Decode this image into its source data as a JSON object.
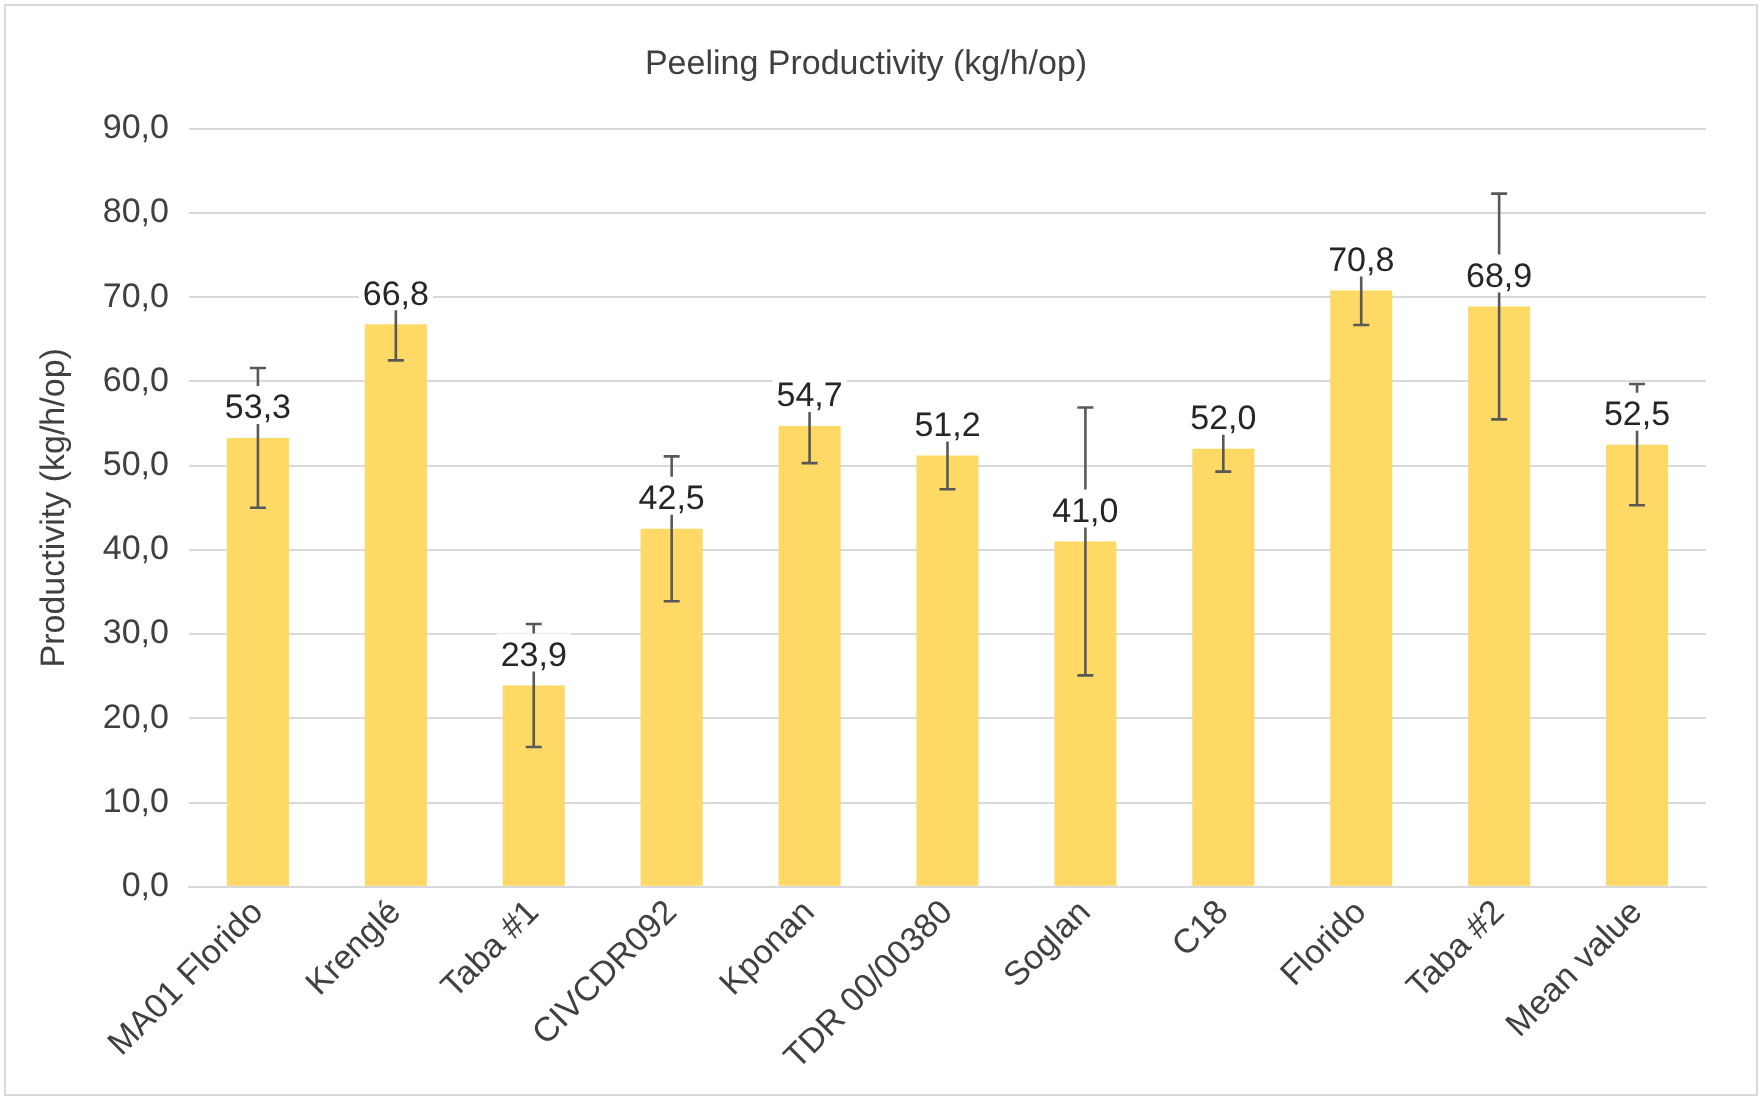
{
  "chart_data": {
    "type": "bar",
    "title": "Peeling Productivity (kg/h/op)",
    "ylabel": "Productivity (kg/h/op)",
    "categories": [
      "MA01 Florido",
      "Krenglé",
      "Taba #1",
      "CIVCDR092",
      "Kponan",
      "TDR 00/00380",
      "Soglan",
      "C18",
      "Florido",
      "Taba #2",
      "Mean value"
    ],
    "values": [
      53.3,
      66.8,
      23.9,
      42.5,
      54.7,
      51.2,
      41.0,
      52.0,
      70.8,
      68.9,
      52.5
    ],
    "value_labels": [
      "53,3",
      "66,8",
      "23,9",
      "42,5",
      "54,7",
      "51,2",
      "41,0",
      "52,0",
      "70,8",
      "68,9",
      "52,5"
    ],
    "errors": [
      8.3,
      4.3,
      7.3,
      8.6,
      4.4,
      4.0,
      15.9,
      2.7,
      4.1,
      13.4,
      7.2
    ],
    "color": "#ffd966",
    "ylim": [
      0,
      90
    ],
    "yticks": [
      {
        "value": 0,
        "label": "0,0"
      },
      {
        "value": 10,
        "label": "10,0"
      },
      {
        "value": 20,
        "label": "20,0"
      },
      {
        "value": 30,
        "label": "30,0"
      },
      {
        "value": 40,
        "label": "40,0"
      },
      {
        "value": 50,
        "label": "50,0"
      },
      {
        "value": 60,
        "label": "60,0"
      },
      {
        "value": 70,
        "label": "70,0"
      },
      {
        "value": 80,
        "label": "80,0"
      },
      {
        "value": 90,
        "label": "90,0"
      }
    ],
    "grid": "y",
    "legend": false
  }
}
